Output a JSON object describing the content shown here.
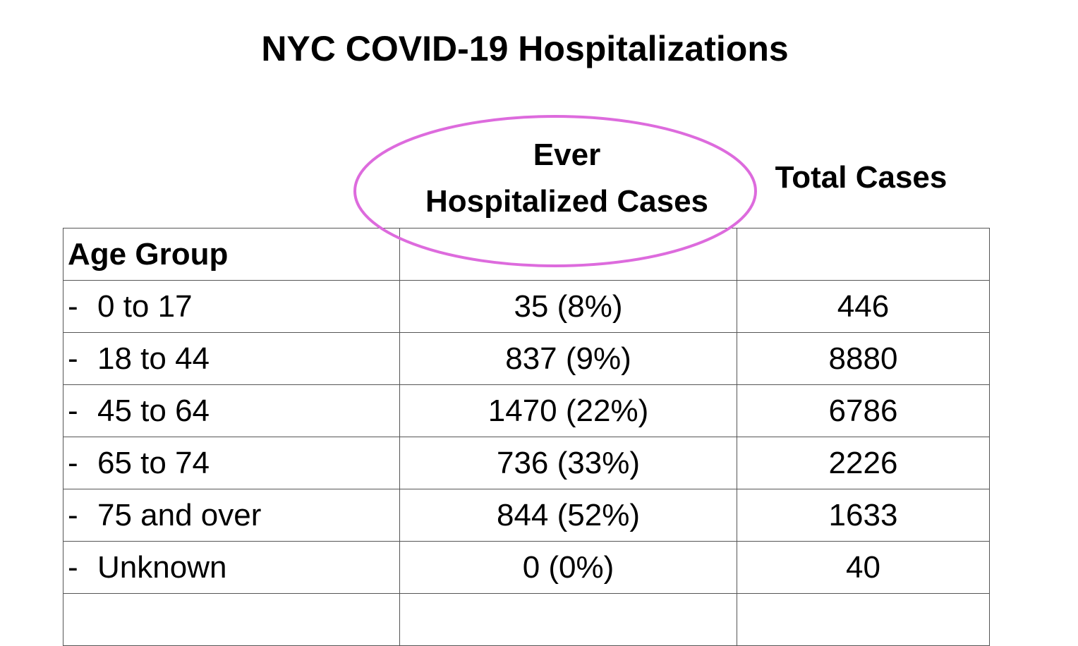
{
  "title": "NYC COVID-19 Hospitalizations",
  "columns": {
    "ever_hospitalized": "Ever\nHospitalized Cases",
    "ever_line1": "Ever",
    "ever_line2": "Hospitalized Cases",
    "total_cases": "Total Cases"
  },
  "table": {
    "group_header": "Age Group",
    "row_prefix": "-",
    "rows": [
      {
        "label": "0 to 17",
        "hospitalized": "35 (8%)",
        "total": "446"
      },
      {
        "label": "18 to 44",
        "hospitalized": "837 (9%)",
        "total": "8880"
      },
      {
        "label": "45 to 64",
        "hospitalized": "1470 (22%)",
        "total": "6786"
      },
      {
        "label": "65 to 74",
        "hospitalized": "736 (33%)",
        "total": "2226"
      },
      {
        "label": "75 and over",
        "hospitalized": "844 (52%)",
        "total": "1633"
      },
      {
        "label": "Unknown",
        "hospitalized": "0 (0%)",
        "total": "40"
      }
    ]
  },
  "colors": {
    "highlight_ellipse": "#dd6bdd",
    "grid": "#555555",
    "text": "#000000"
  }
}
